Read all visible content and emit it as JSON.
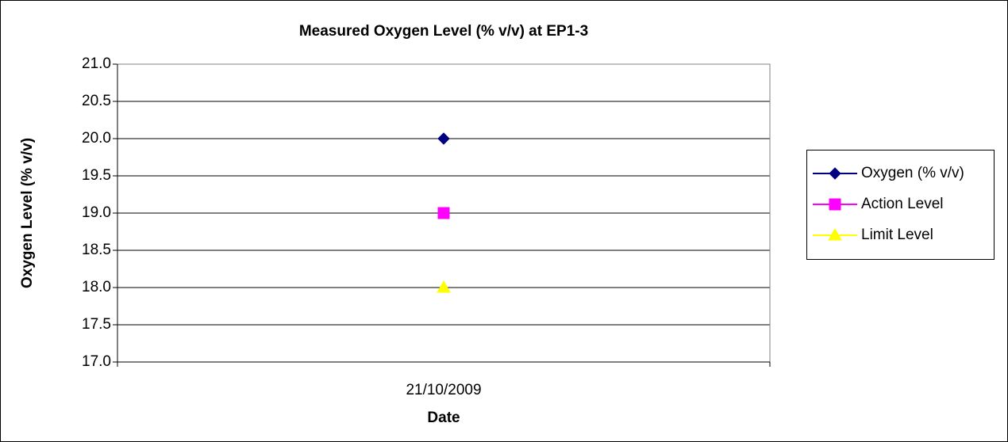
{
  "chart_data": {
    "type": "line",
    "title": "Measured Oxygen Level (% v/v) at EP1-3",
    "x_label": "Date",
    "y_label": "Oxygen Level (% v/v)",
    "categories": [
      "21/10/2009"
    ],
    "series": [
      {
        "name": "Oxygen (% v/v)",
        "color": "#000080",
        "marker": "diamond",
        "values": [
          20
        ]
      },
      {
        "name": "Action Level",
        "color": "#ff00ff",
        "marker": "square",
        "values": [
          19
        ]
      },
      {
        "name": "Limit Level",
        "color": "#ffff00",
        "marker": "triangle",
        "values": [
          18
        ]
      }
    ],
    "ylim": [
      17,
      21
    ],
    "yticks": [
      {
        "value": 17,
        "label": "17.0"
      },
      17.5,
      {
        "value": 18,
        "label": "18.0"
      },
      18.5,
      {
        "value": 19,
        "label": "19.0"
      },
      19.5,
      {
        "value": 20,
        "label": "20.0"
      },
      20.5,
      {
        "value": 21,
        "label": "21.0"
      }
    ],
    "grid": true,
    "legend": "right"
  }
}
